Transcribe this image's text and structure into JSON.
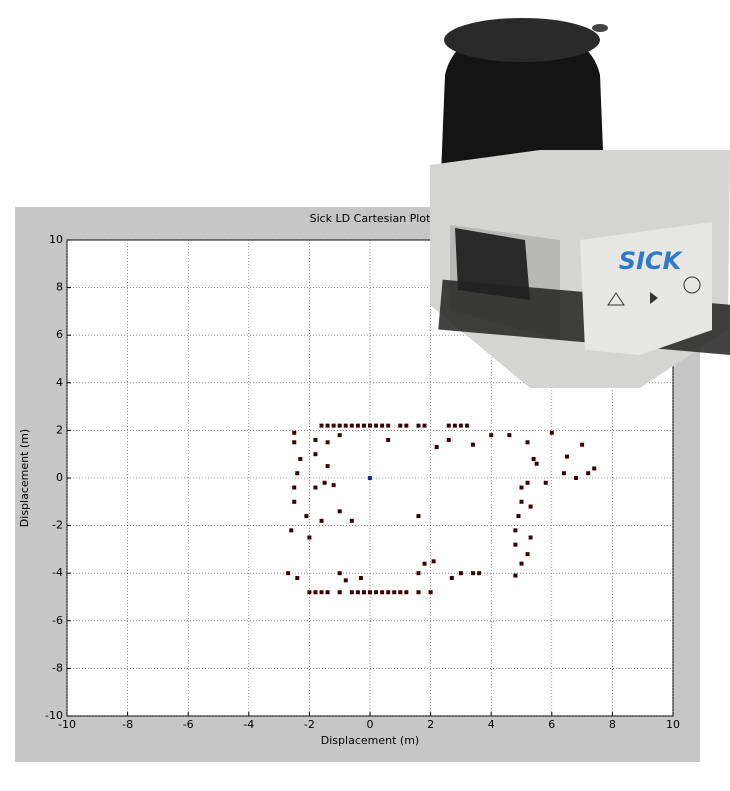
{
  "chart_data": {
    "type": "scatter",
    "title": "Sick LD Cartesian Plot",
    "x_label": "Displacement (m)",
    "y_label": "Displacement (m)",
    "xlim": [
      -10,
      10
    ],
    "ylim": [
      -10,
      10
    ],
    "xticks": [
      -10,
      -8,
      -6,
      -4,
      -2,
      0,
      2,
      4,
      6,
      8,
      10
    ],
    "yticks": [
      -10,
      -8,
      -6,
      -4,
      -2,
      0,
      2,
      4,
      6,
      8,
      10
    ],
    "grid": true,
    "series": [
      {
        "color": "#3a0000",
        "x": [
          -1.6,
          -1.4,
          -1.2,
          -1.0,
          -0.8,
          -0.6,
          -0.4,
          -0.2,
          0,
          0.2,
          0.4,
          0.6,
          1.0,
          1.2,
          1.6,
          1.8,
          2.6,
          2.8,
          3.0,
          3.2,
          -2.5,
          -2.5,
          -2.3,
          -2.4,
          -2.5,
          -2.5,
          -2.6,
          -2.1,
          -1.8,
          -1.5,
          -1.2,
          -1.4,
          -1.8,
          -1.8,
          -1.4,
          -1.0,
          -1.0,
          -0.6,
          -2.0,
          -1.6,
          -2.0,
          -1.8,
          -1.6,
          -1.4,
          -1.0,
          -0.6,
          -0.4,
          -0.2,
          0,
          0.2,
          0.4,
          0.6,
          0.8,
          1.0,
          1.2,
          1.6,
          2.0,
          -2.7,
          -2.4,
          -1.0,
          -0.8,
          -0.3,
          1.6,
          1.8,
          2.1,
          2.7,
          3.0,
          3.4,
          3.6,
          4.8,
          5.0,
          5.2,
          4.8,
          4.8,
          4.9,
          5.0,
          5.0,
          5.2,
          5.3,
          5.3,
          4.6,
          5.2,
          5.4,
          5.5,
          6.0,
          6.5,
          6.4,
          7.0,
          7.2,
          7.4,
          6.8,
          5.8,
          4.0,
          3.4,
          2.6,
          2.2,
          0.6,
          1.6
        ],
        "y": [
          2.2,
          2.2,
          2.2,
          2.2,
          2.2,
          2.2,
          2.2,
          2.2,
          2.2,
          2.2,
          2.2,
          2.2,
          2.2,
          2.2,
          2.2,
          2.2,
          2.2,
          2.2,
          2.2,
          2.2,
          1.9,
          1.5,
          0.8,
          0.2,
          -0.4,
          -1.0,
          -2.2,
          -1.6,
          -0.4,
          -0.2,
          -0.3,
          0.5,
          1.0,
          1.6,
          1.5,
          1.8,
          -1.4,
          -1.8,
          -2.5,
          -1.8,
          -4.8,
          -4.8,
          -4.8,
          -4.8,
          -4.8,
          -4.8,
          -4.8,
          -4.8,
          -4.8,
          -4.8,
          -4.8,
          -4.8,
          -4.8,
          -4.8,
          -4.8,
          -4.8,
          -4.8,
          -4.0,
          -4.2,
          -4.0,
          -4.3,
          -4.2,
          -4.0,
          -3.6,
          -3.5,
          -4.2,
          -4.0,
          -4.0,
          -4.0,
          -4.1,
          -3.6,
          -3.2,
          -2.8,
          -2.2,
          -1.6,
          -1.0,
          -0.4,
          -0.2,
          -1.2,
          -2.5,
          1.8,
          1.5,
          0.8,
          0.6,
          1.9,
          0.9,
          0.2,
          1.4,
          0.2,
          0.4,
          0.0,
          -0.2,
          1.8,
          1.4,
          1.6,
          1.3,
          1.6,
          -1.6
        ]
      },
      {
        "color": "#1f2a8a",
        "x": [
          0
        ],
        "y": [
          0
        ]
      }
    ]
  },
  "device_logo": "SICK"
}
